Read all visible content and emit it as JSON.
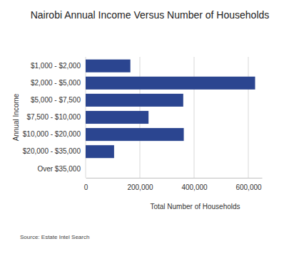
{
  "chart_data": {
    "type": "bar",
    "orientation": "horizontal",
    "title": "Nairobi Annual Income Versus Number of Households",
    "xlabel": "Total Number of Households",
    "ylabel": "Annual Income",
    "annotation": "Source: Estate Intel Search",
    "categories": [
      "$1,000 - $2,000",
      "$2,000 - $5,000",
      "$5,000 - $7,500",
      "$7,500 - $10,000",
      "$10,000 - $20,000",
      "$20,000 - $35,000",
      "Over $35,000"
    ],
    "values": [
      165000,
      625000,
      360000,
      232000,
      362000,
      105000,
      0
    ],
    "color": "#2b4590",
    "xlim": [
      0,
      650000
    ],
    "xticks": [
      0,
      {
        "value": 200000,
        "label": "200,000"
      },
      {
        "value": 400000,
        "label": "400,000"
      },
      {
        "value": 600000,
        "label": "600,000"
      }
    ],
    "grid": true
  }
}
